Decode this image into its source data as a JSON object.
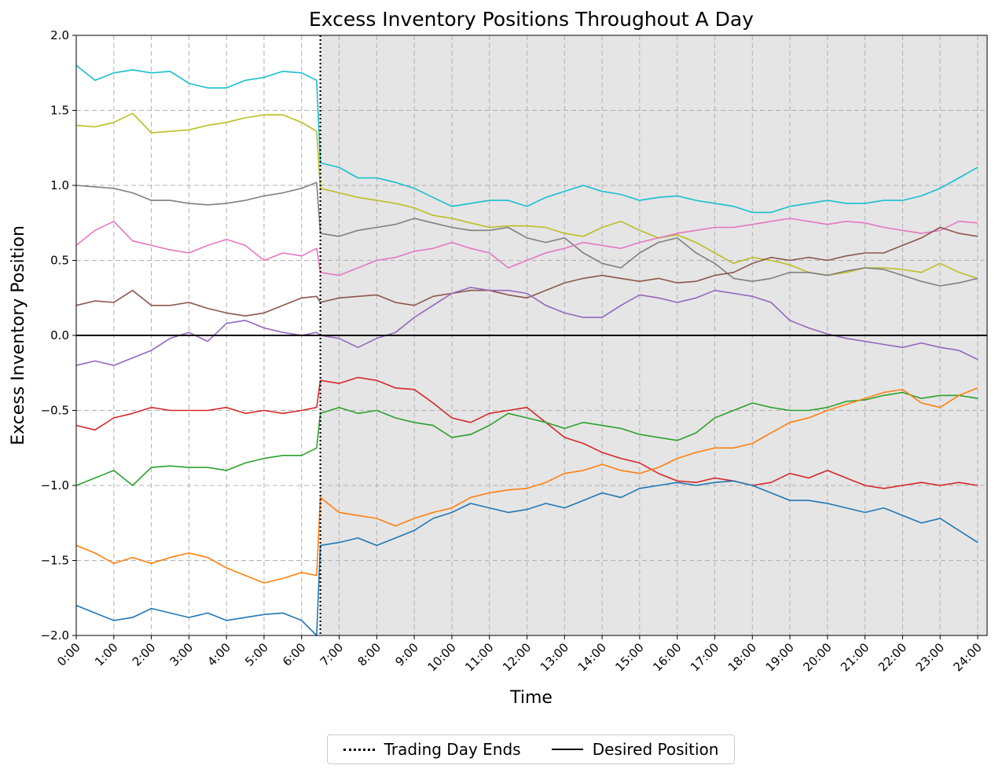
{
  "chart_data": {
    "type": "line",
    "title": "Excess Inventory Positions Throughout A Day",
    "xlabel": "Time",
    "ylabel": "Excess Inventory Position",
    "xlim": [
      0,
      24
    ],
    "ylim": [
      -2.0,
      2.0
    ],
    "grid": true,
    "x_ticks": [
      "0:00",
      "1:00",
      "2:00",
      "3:00",
      "4:00",
      "5:00",
      "6:00",
      "7:00",
      "8:00",
      "9:00",
      "10:00",
      "11:00",
      "12:00",
      "13:00",
      "14:00",
      "15:00",
      "16:00",
      "17:00",
      "18:00",
      "19:00",
      "20:00",
      "21:00",
      "22:00",
      "23:00",
      "24:00"
    ],
    "y_ticks": [
      "2.0",
      "1.5",
      "1.0",
      "0.5",
      "0.0",
      "−0.5",
      "−1.0",
      "−1.5",
      "−2.0"
    ],
    "trading_day_end_hour": 6.5,
    "desired_position": 0.0,
    "shaded_region": [
      6.5,
      24
    ],
    "legend": [
      {
        "label": "Trading Day Ends",
        "style": "dotted"
      },
      {
        "label": "Desired Position",
        "style": "solid"
      }
    ],
    "series": [
      {
        "color": "#17becf",
        "x": [
          0,
          0.5,
          1,
          1.5,
          2,
          2.5,
          3,
          3.5,
          4,
          4.5,
          5,
          5.5,
          6,
          6.4,
          6.5,
          7,
          7.5,
          8,
          8.5,
          9,
          9.5,
          10,
          10.5,
          11,
          11.5,
          12,
          12.5,
          13,
          13.5,
          14,
          14.5,
          15,
          15.5,
          16,
          16.5,
          17,
          17.5,
          18,
          18.5,
          19,
          19.5,
          20,
          20.5,
          21,
          21.5,
          22,
          22.5,
          23,
          23.5,
          24
        ],
        "y": [
          1.8,
          1.7,
          1.75,
          1.77,
          1.75,
          1.76,
          1.68,
          1.65,
          1.65,
          1.7,
          1.72,
          1.76,
          1.75,
          1.7,
          1.15,
          1.12,
          1.05,
          1.05,
          1.02,
          0.98,
          0.92,
          0.86,
          0.88,
          0.9,
          0.9,
          0.86,
          0.92,
          0.96,
          1.0,
          0.96,
          0.94,
          0.9,
          0.92,
          0.93,
          0.9,
          0.88,
          0.86,
          0.82,
          0.82,
          0.86,
          0.88,
          0.9,
          0.88,
          0.88,
          0.9,
          0.9,
          0.93,
          0.98,
          1.05,
          1.12
        ]
      },
      {
        "color": "#bcbd22",
        "x": [
          0,
          0.5,
          1,
          1.5,
          2,
          2.5,
          3,
          3.5,
          4,
          4.5,
          5,
          5.5,
          6,
          6.4,
          6.5,
          7,
          7.5,
          8,
          8.5,
          9,
          9.5,
          10,
          10.5,
          11,
          11.5,
          12,
          12.5,
          13,
          13.5,
          14,
          14.5,
          15,
          15.5,
          16,
          16.5,
          17,
          17.5,
          18,
          18.5,
          19,
          19.5,
          20,
          20.5,
          21,
          21.5,
          22,
          22.5,
          23,
          23.5,
          24
        ],
        "y": [
          1.4,
          1.39,
          1.42,
          1.48,
          1.35,
          1.36,
          1.37,
          1.4,
          1.42,
          1.45,
          1.47,
          1.47,
          1.42,
          1.36,
          0.98,
          0.95,
          0.92,
          0.9,
          0.88,
          0.85,
          0.8,
          0.78,
          0.75,
          0.72,
          0.73,
          0.73,
          0.72,
          0.68,
          0.66,
          0.72,
          0.76,
          0.7,
          0.65,
          0.67,
          0.62,
          0.55,
          0.48,
          0.52,
          0.5,
          0.47,
          0.42,
          0.4,
          0.42,
          0.45,
          0.45,
          0.44,
          0.42,
          0.48,
          0.42,
          0.38
        ]
      },
      {
        "color": "#7f7f7f",
        "x": [
          0,
          0.5,
          1,
          1.5,
          2,
          2.5,
          3,
          3.5,
          4,
          4.5,
          5,
          5.5,
          6,
          6.4,
          6.5,
          7,
          7.5,
          8,
          8.5,
          9,
          9.5,
          10,
          10.5,
          11,
          11.5,
          12,
          12.5,
          13,
          13.5,
          14,
          14.5,
          15,
          15.5,
          16,
          16.5,
          17,
          17.5,
          18,
          18.5,
          19,
          19.5,
          20,
          20.5,
          21,
          21.5,
          22,
          22.5,
          23,
          23.5,
          24
        ],
        "y": [
          1.0,
          0.99,
          0.98,
          0.95,
          0.9,
          0.9,
          0.88,
          0.87,
          0.88,
          0.9,
          0.93,
          0.95,
          0.98,
          1.02,
          0.68,
          0.66,
          0.7,
          0.72,
          0.74,
          0.78,
          0.75,
          0.72,
          0.7,
          0.7,
          0.72,
          0.65,
          0.62,
          0.65,
          0.55,
          0.48,
          0.45,
          0.55,
          0.62,
          0.65,
          0.55,
          0.48,
          0.38,
          0.36,
          0.38,
          0.42,
          0.42,
          0.4,
          0.43,
          0.45,
          0.44,
          0.4,
          0.36,
          0.33,
          0.35,
          0.38
        ]
      },
      {
        "color": "#e377c2",
        "x": [
          0,
          0.5,
          1,
          1.5,
          2,
          2.5,
          3,
          3.5,
          4,
          4.5,
          5,
          5.5,
          6,
          6.4,
          6.5,
          7,
          7.5,
          8,
          8.5,
          9,
          9.5,
          10,
          10.5,
          11,
          11.5,
          12,
          12.5,
          13,
          13.5,
          14,
          14.5,
          15,
          15.5,
          16,
          16.5,
          17,
          17.5,
          18,
          18.5,
          19,
          19.5,
          20,
          20.5,
          21,
          21.5,
          22,
          22.5,
          23,
          23.5,
          24
        ],
        "y": [
          0.6,
          0.7,
          0.76,
          0.63,
          0.6,
          0.57,
          0.55,
          0.6,
          0.64,
          0.6,
          0.5,
          0.55,
          0.53,
          0.58,
          0.42,
          0.4,
          0.45,
          0.5,
          0.52,
          0.56,
          0.58,
          0.62,
          0.58,
          0.55,
          0.45,
          0.5,
          0.55,
          0.58,
          0.62,
          0.6,
          0.58,
          0.62,
          0.65,
          0.68,
          0.7,
          0.72,
          0.72,
          0.74,
          0.76,
          0.78,
          0.76,
          0.74,
          0.76,
          0.75,
          0.72,
          0.7,
          0.68,
          0.7,
          0.76,
          0.75
        ]
      },
      {
        "color": "#8c564b",
        "x": [
          0,
          0.5,
          1,
          1.5,
          2,
          2.5,
          3,
          3.5,
          4,
          4.5,
          5,
          5.5,
          6,
          6.4,
          6.5,
          7,
          7.5,
          8,
          8.5,
          9,
          9.5,
          10,
          10.5,
          11,
          11.5,
          12,
          12.5,
          13,
          13.5,
          14,
          14.5,
          15,
          15.5,
          16,
          16.5,
          17,
          17.5,
          18,
          18.5,
          19,
          19.5,
          20,
          20.5,
          21,
          21.5,
          22,
          22.5,
          23,
          23.5,
          24
        ],
        "y": [
          0.2,
          0.23,
          0.22,
          0.3,
          0.2,
          0.2,
          0.22,
          0.18,
          0.15,
          0.13,
          0.15,
          0.2,
          0.25,
          0.26,
          0.22,
          0.25,
          0.26,
          0.27,
          0.22,
          0.2,
          0.26,
          0.28,
          0.3,
          0.3,
          0.27,
          0.25,
          0.3,
          0.35,
          0.38,
          0.4,
          0.38,
          0.36,
          0.38,
          0.35,
          0.36,
          0.4,
          0.42,
          0.48,
          0.52,
          0.5,
          0.52,
          0.5,
          0.53,
          0.55,
          0.55,
          0.6,
          0.65,
          0.72,
          0.68,
          0.66
        ]
      },
      {
        "color": "#9467bd",
        "x": [
          0,
          0.5,
          1,
          1.5,
          2,
          2.5,
          3,
          3.5,
          4,
          4.5,
          5,
          5.5,
          6,
          6.4,
          6.5,
          7,
          7.5,
          8,
          8.5,
          9,
          9.5,
          10,
          10.5,
          11,
          11.5,
          12,
          12.5,
          13,
          13.5,
          14,
          14.5,
          15,
          15.5,
          16,
          16.5,
          17,
          17.5,
          18,
          18.5,
          19,
          19.5,
          20,
          20.5,
          21,
          21.5,
          22,
          22.5,
          23,
          23.5,
          24
        ],
        "y": [
          -0.2,
          -0.17,
          -0.2,
          -0.15,
          -0.1,
          -0.02,
          0.02,
          -0.04,
          0.08,
          0.1,
          0.05,
          0.02,
          0.0,
          0.02,
          0.0,
          -0.02,
          -0.08,
          -0.02,
          0.02,
          0.12,
          0.2,
          0.28,
          0.32,
          0.3,
          0.3,
          0.28,
          0.2,
          0.15,
          0.12,
          0.12,
          0.2,
          0.27,
          0.25,
          0.22,
          0.25,
          0.3,
          0.28,
          0.26,
          0.22,
          0.1,
          0.05,
          0.01,
          -0.02,
          -0.04,
          -0.06,
          -0.08,
          -0.05,
          -0.08,
          -0.1,
          -0.16
        ]
      },
      {
        "color": "#d62728",
        "x": [
          0,
          0.5,
          1,
          1.5,
          2,
          2.5,
          3,
          3.5,
          4,
          4.5,
          5,
          5.5,
          6,
          6.4,
          6.5,
          7,
          7.5,
          8,
          8.5,
          9,
          9.5,
          10,
          10.5,
          11,
          11.5,
          12,
          12.5,
          13,
          13.5,
          14,
          14.5,
          15,
          15.5,
          16,
          16.5,
          17,
          17.5,
          18,
          18.5,
          19,
          19.5,
          20,
          20.5,
          21,
          21.5,
          22,
          22.5,
          23,
          23.5,
          24
        ],
        "y": [
          -0.6,
          -0.63,
          -0.55,
          -0.52,
          -0.48,
          -0.5,
          -0.5,
          -0.5,
          -0.48,
          -0.52,
          -0.5,
          -0.52,
          -0.5,
          -0.48,
          -0.3,
          -0.32,
          -0.28,
          -0.3,
          -0.35,
          -0.36,
          -0.45,
          -0.55,
          -0.58,
          -0.52,
          -0.5,
          -0.48,
          -0.58,
          -0.68,
          -0.72,
          -0.78,
          -0.82,
          -0.85,
          -0.92,
          -0.97,
          -0.98,
          -0.95,
          -0.97,
          -1.0,
          -0.98,
          -0.92,
          -0.95,
          -0.9,
          -0.95,
          -1.0,
          -1.02,
          -1.0,
          -0.98,
          -1.0,
          -0.98,
          -1.0
        ]
      },
      {
        "color": "#2ca02c",
        "x": [
          0,
          0.5,
          1,
          1.5,
          2,
          2.5,
          3,
          3.5,
          4,
          4.5,
          5,
          5.5,
          6,
          6.4,
          6.5,
          7,
          7.5,
          8,
          8.5,
          9,
          9.5,
          10,
          10.5,
          11,
          11.5,
          12,
          12.5,
          13,
          13.5,
          14,
          14.5,
          15,
          15.5,
          16,
          16.5,
          17,
          17.5,
          18,
          18.5,
          19,
          19.5,
          20,
          20.5,
          21,
          21.5,
          22,
          22.5,
          23,
          23.5,
          24
        ],
        "y": [
          -1.0,
          -0.95,
          -0.9,
          -1.0,
          -0.88,
          -0.87,
          -0.88,
          -0.88,
          -0.9,
          -0.85,
          -0.82,
          -0.8,
          -0.8,
          -0.75,
          -0.52,
          -0.48,
          -0.52,
          -0.5,
          -0.55,
          -0.58,
          -0.6,
          -0.68,
          -0.66,
          -0.6,
          -0.52,
          -0.55,
          -0.58,
          -0.62,
          -0.58,
          -0.6,
          -0.62,
          -0.66,
          -0.68,
          -0.7,
          -0.65,
          -0.55,
          -0.5,
          -0.45,
          -0.48,
          -0.5,
          -0.5,
          -0.48,
          -0.44,
          -0.43,
          -0.4,
          -0.38,
          -0.42,
          -0.4,
          -0.4,
          -0.42
        ]
      },
      {
        "color": "#ff7f0e",
        "x": [
          0,
          0.5,
          1,
          1.5,
          2,
          2.5,
          3,
          3.5,
          4,
          4.5,
          5,
          5.5,
          6,
          6.4,
          6.5,
          7,
          7.5,
          8,
          8.5,
          9,
          9.5,
          10,
          10.5,
          11,
          11.5,
          12,
          12.5,
          13,
          13.5,
          14,
          14.5,
          15,
          15.5,
          16,
          16.5,
          17,
          17.5,
          18,
          18.5,
          19,
          19.5,
          20,
          20.5,
          21,
          21.5,
          22,
          22.5,
          23,
          23.5,
          24
        ],
        "y": [
          -1.4,
          -1.45,
          -1.52,
          -1.48,
          -1.52,
          -1.48,
          -1.45,
          -1.48,
          -1.55,
          -1.6,
          -1.65,
          -1.62,
          -1.58,
          -1.6,
          -1.08,
          -1.18,
          -1.2,
          -1.22,
          -1.27,
          -1.22,
          -1.18,
          -1.15,
          -1.08,
          -1.05,
          -1.03,
          -1.02,
          -0.98,
          -0.92,
          -0.9,
          -0.86,
          -0.9,
          -0.92,
          -0.88,
          -0.82,
          -0.78,
          -0.75,
          -0.75,
          -0.72,
          -0.65,
          -0.58,
          -0.55,
          -0.5,
          -0.46,
          -0.42,
          -0.38,
          -0.36,
          -0.45,
          -0.48,
          -0.4,
          -0.35
        ]
      },
      {
        "color": "#1f77b4",
        "x": [
          0,
          0.5,
          1,
          1.5,
          2,
          2.5,
          3,
          3.5,
          4,
          4.5,
          5,
          5.5,
          6,
          6.4,
          6.5,
          7,
          7.5,
          8,
          8.5,
          9,
          9.5,
          10,
          10.5,
          11,
          11.5,
          12,
          12.5,
          13,
          13.5,
          14,
          14.5,
          15,
          15.5,
          16,
          16.5,
          17,
          17.5,
          18,
          18.5,
          19,
          19.5,
          20,
          20.5,
          21,
          21.5,
          22,
          22.5,
          23,
          23.5,
          24
        ],
        "y": [
          -1.8,
          -1.85,
          -1.9,
          -1.88,
          -1.82,
          -1.85,
          -1.88,
          -1.85,
          -1.9,
          -1.88,
          -1.86,
          -1.85,
          -1.9,
          -2.0,
          -1.4,
          -1.38,
          -1.35,
          -1.4,
          -1.35,
          -1.3,
          -1.22,
          -1.18,
          -1.12,
          -1.15,
          -1.18,
          -1.16,
          -1.12,
          -1.15,
          -1.1,
          -1.05,
          -1.08,
          -1.02,
          -1.0,
          -0.98,
          -1.0,
          -0.98,
          -0.97,
          -1.0,
          -1.05,
          -1.1,
          -1.1,
          -1.12,
          -1.15,
          -1.18,
          -1.15,
          -1.2,
          -1.25,
          -1.22,
          -1.3,
          -1.38
        ]
      }
    ]
  }
}
